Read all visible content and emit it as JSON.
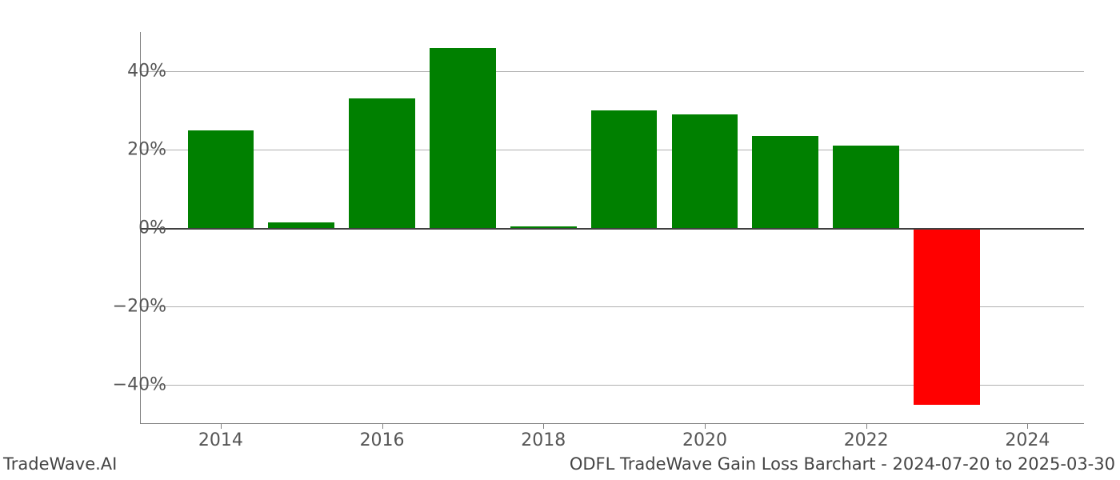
{
  "chart": {
    "type": "bar",
    "background_color": "#ffffff",
    "grid_color": "#b0b0b0",
    "zero_line_color": "#404040",
    "spine_color": "#808080",
    "positive_color": "#008000",
    "negative_color": "#ff0000",
    "ylim": [
      -50,
      50
    ],
    "y_ticks": [
      -40,
      -20,
      0,
      20,
      40
    ],
    "y_tick_labels": [
      "−40%",
      "−20%",
      "0%",
      "20%",
      "40%"
    ],
    "x_ticks": [
      2014,
      2016,
      2018,
      2020,
      2022,
      2024
    ],
    "x_tick_labels": [
      "2014",
      "2016",
      "2018",
      "2020",
      "2022",
      "2024"
    ],
    "x_range": [
      2013.0,
      2024.7
    ],
    "years": [
      2014,
      2015,
      2016,
      2017,
      2018,
      2019,
      2020,
      2021,
      2022,
      2023
    ],
    "values": [
      25,
      1.5,
      33,
      46,
      0.5,
      30,
      29,
      23.5,
      21,
      -45
    ],
    "bar_width": 0.82,
    "tick_label_fontsize": 22,
    "tick_label_color": "#555555",
    "footer_fontsize": 21,
    "footer_color": "#444444"
  },
  "footer": {
    "left": "TradeWave.AI",
    "right": "ODFL TradeWave Gain Loss Barchart - 2024-07-20 to 2025-03-30"
  }
}
